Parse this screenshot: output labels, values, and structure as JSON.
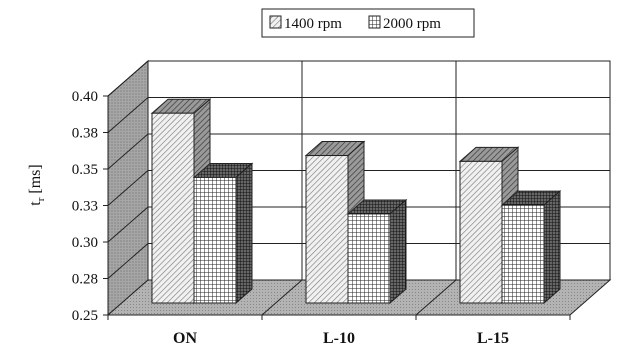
{
  "chart_data": {
    "type": "bar",
    "style": "3d-clustered",
    "title": "",
    "xlabel": "",
    "ylabel": "t",
    "ylabel_subscript": "r",
    "ylabel_unit": "[ms]",
    "ylim": [
      0.25,
      0.4
    ],
    "yticks": [
      "0.25",
      "0.28",
      "0.30",
      "0.33",
      "0.35",
      "0.38",
      "0.40"
    ],
    "categories": [
      "ON",
      "L-10",
      "L-15"
    ],
    "series": [
      {
        "name": "1400 rpm",
        "pattern": "diagonal-hatch",
        "values": [
          0.38,
          0.351,
          0.347
        ]
      },
      {
        "name": "2000 rpm",
        "pattern": "grid-hatch",
        "values": [
          0.336,
          0.311,
          0.317
        ]
      }
    ],
    "grid": true,
    "legend": "top-center"
  }
}
